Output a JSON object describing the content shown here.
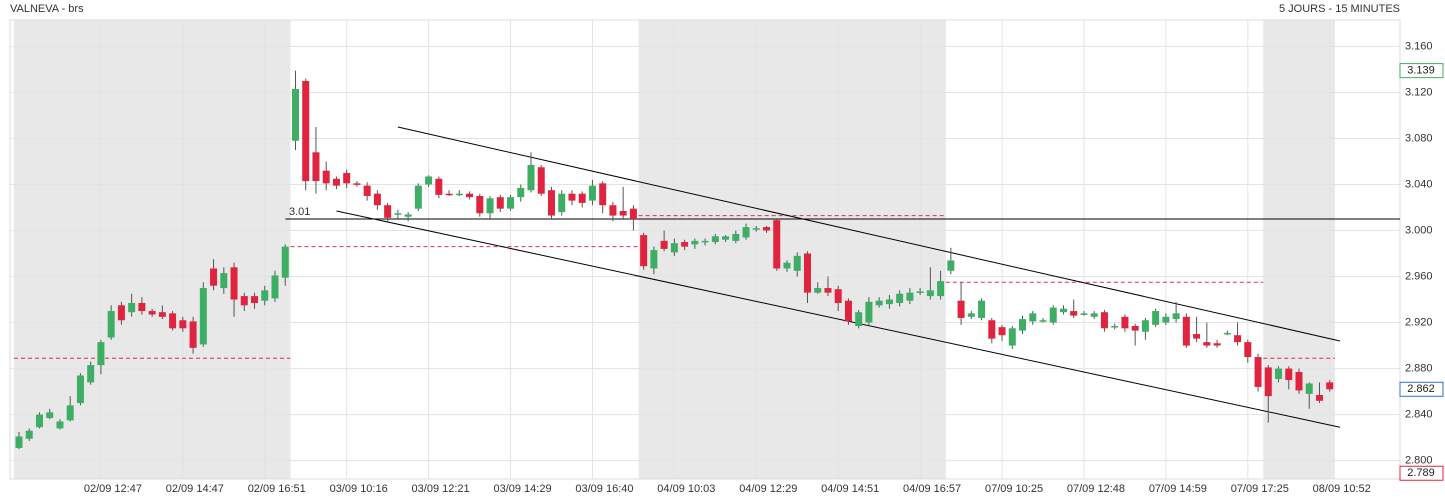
{
  "chart_data": {
    "type": "candlestick",
    "title": "VALNEVA - brs",
    "subtitle": "5 JOURS - 15 MINUTES",
    "categories": [
      null,
      null,
      null,
      null,
      null,
      null,
      null,
      null,
      "02/09 12:47",
      null,
      null,
      null,
      null,
      null,
      null,
      null,
      "02/09 14:47",
      null,
      null,
      null,
      null,
      null,
      null,
      null,
      "02/09 16:51",
      null,
      null,
      null,
      null,
      null,
      null,
      null,
      "03/09 10:16",
      null,
      null,
      null,
      null,
      null,
      null,
      null,
      "03/09 12:21",
      null,
      null,
      null,
      null,
      null,
      null,
      null,
      "03/09 14:29",
      null,
      null,
      null,
      null,
      null,
      null,
      null,
      "03/09 16:40",
      null,
      null,
      null,
      null,
      null,
      null,
      null,
      "04/09 10:03",
      null,
      null,
      null,
      null,
      null,
      null,
      null,
      "04/09 12:29",
      null,
      null,
      null,
      null,
      null,
      null,
      null,
      "04/09 14:51",
      null,
      null,
      null,
      null,
      null,
      null,
      null,
      "04/09 16:57",
      null,
      null,
      null,
      null,
      null,
      null,
      null,
      "07/09 10:25",
      null,
      null,
      null,
      null,
      null,
      null,
      null,
      "07/09 12:48",
      null,
      null,
      null,
      null,
      null,
      null,
      null,
      "07/09 14:59",
      null,
      null,
      null,
      null,
      null,
      null,
      null,
      "07/09 17:25",
      null,
      null,
      null,
      null,
      null,
      null,
      null,
      "08/09 10:52"
    ],
    "open": [
      2.811,
      2.819,
      2.829,
      2.837,
      2.828,
      2.835,
      2.85,
      2.868,
      2.883,
      2.907,
      2.935,
      2.929,
      2.937,
      2.93,
      2.929,
      2.928,
      2.922,
      2.921,
      2.901,
      2.967,
      2.95,
      2.968,
      2.943,
      2.943,
      2.939,
      2.941,
      2.959,
      3.078,
      3.13,
      3.068,
      3.052,
      3.045,
      3.05,
      3.041,
      3.039,
      3.032,
      3.022,
      3.014,
      3.012,
      3.019,
      3.04,
      3.045,
      3.032,
      3.031,
      3.032,
      3.03,
      3.015,
      3.029,
      3.019,
      3.029,
      3.035,
      3.055,
      3.035,
      3.016,
      3.032,
      3.032,
      3.026,
      3.041,
      3.022,
      3.017,
      3.019,
      2.996,
      2.967,
      2.991,
      2.981,
      2.99,
      2.988,
      2.99,
      2.99,
      2.992,
      2.991,
      2.994,
      3.002,
      3.003,
      3.009,
      2.967,
      2.965,
      2.98,
      2.946,
      2.95,
      2.949,
      2.939,
      2.917,
      2.92,
      2.935,
      2.936,
      2.937,
      2.939,
      2.946,
      2.943,
      2.943,
      2.965,
      2.939,
      2.925,
      2.924,
      2.922,
      2.916,
      2.9,
      2.913,
      2.921,
      2.922,
      2.92,
      2.929,
      2.93,
      2.928,
      2.925,
      2.929,
      2.917,
      2.925,
      2.917,
      2.912,
      2.918,
      2.92,
      2.923,
      2.925,
      2.91,
      2.903,
      2.902,
      2.911,
      2.909,
      2.903,
      2.89,
      2.881,
      2.871,
      2.88,
      2.877,
      2.858,
      2.857,
      2.868
    ],
    "high": [
      2.825,
      2.828,
      2.842,
      2.845,
      2.836,
      2.856,
      2.876,
      2.886,
      2.905,
      2.935,
      2.938,
      2.945,
      2.942,
      2.932,
      2.935,
      2.93,
      2.925,
      2.925,
      2.955,
      2.975,
      2.968,
      2.972,
      2.946,
      2.946,
      2.952,
      2.965,
      2.988,
      3.139,
      3.132,
      3.09,
      3.06,
      3.047,
      3.053,
      3.043,
      3.042,
      3.035,
      3.024,
      3.018,
      3.016,
      3.041,
      3.048,
      3.047,
      3.035,
      3.035,
      3.034,
      3.032,
      3.03,
      3.031,
      3.031,
      3.04,
      3.068,
      3.057,
      3.038,
      3.035,
      3.035,
      3.034,
      3.044,
      3.043,
      3.025,
      3.038,
      3.022,
      2.998,
      2.986,
      3.0,
      2.993,
      2.992,
      2.993,
      2.993,
      2.997,
      2.996,
      3.0,
      3.006,
      3.004,
      3.004,
      3.01,
      2.974,
      2.981,
      2.982,
      2.955,
      2.96,
      2.952,
      2.941,
      2.931,
      2.942,
      2.942,
      2.944,
      2.948,
      2.95,
      2.95,
      2.968,
      2.965,
      2.985,
      2.955,
      2.93,
      2.941,
      2.924,
      2.918,
      2.917,
      2.926,
      2.93,
      2.924,
      2.935,
      2.935,
      2.94,
      2.93,
      2.93,
      2.931,
      2.919,
      2.927,
      2.919,
      2.924,
      2.932,
      2.928,
      2.938,
      2.928,
      2.925,
      2.92,
      2.905,
      2.913,
      2.92,
      2.905,
      2.893,
      2.883,
      2.882,
      2.882,
      2.88,
      2.868,
      2.868,
      2.87
    ],
    "low": [
      2.81,
      2.817,
      2.828,
      2.836,
      2.827,
      2.834,
      2.848,
      2.866,
      2.875,
      2.905,
      2.918,
      2.925,
      2.927,
      2.925,
      2.923,
      2.913,
      2.912,
      2.893,
      2.899,
      2.948,
      2.945,
      2.925,
      2.93,
      2.932,
      2.935,
      2.938,
      2.952,
      3.07,
      3.035,
      3.032,
      3.035,
      3.036,
      3.037,
      3.038,
      3.026,
      3.018,
      3.008,
      3.01,
      3.008,
      3.017,
      3.038,
      3.028,
      3.03,
      3.03,
      3.027,
      3.012,
      3.01,
      3.016,
      3.017,
      3.025,
      3.033,
      3.03,
      3.01,
      3.013,
      3.022,
      3.02,
      3.022,
      3.015,
      3.008,
      3.01,
      3.0,
      2.966,
      2.962,
      2.982,
      2.978,
      2.983,
      2.984,
      2.987,
      2.988,
      2.99,
      2.989,
      2.992,
      2.999,
      2.998,
      2.965,
      2.964,
      2.96,
      2.937,
      2.945,
      2.943,
      2.93,
      2.918,
      2.915,
      2.917,
      2.933,
      2.932,
      2.934,
      2.936,
      2.944,
      2.94,
      2.94,
      2.962,
      2.918,
      2.923,
      2.922,
      2.902,
      2.904,
      2.897,
      2.91,
      2.918,
      2.92,
      2.918,
      2.927,
      2.924,
      2.926,
      2.923,
      2.912,
      2.914,
      2.912,
      2.9,
      2.905,
      2.916,
      2.918,
      2.92,
      2.898,
      2.903,
      2.898,
      2.898,
      2.909,
      2.9,
      2.885,
      2.86,
      2.833,
      2.868,
      2.862,
      2.858,
      2.845,
      2.85,
      2.86
    ],
    "close": [
      2.821,
      2.826,
      2.84,
      2.842,
      2.834,
      2.848,
      2.874,
      2.883,
      2.903,
      2.93,
      2.922,
      2.937,
      2.93,
      2.927,
      2.925,
      2.915,
      2.915,
      2.898,
      2.95,
      2.952,
      2.963,
      2.94,
      2.935,
      2.937,
      2.948,
      2.961,
      2.986,
      3.123,
      3.043,
      3.043,
      3.041,
      3.039,
      3.041,
      3.04,
      3.03,
      3.022,
      3.011,
      3.015,
      3.014,
      3.039,
      3.047,
      3.031,
      3.031,
      3.032,
      3.029,
      3.015,
      3.028,
      3.019,
      3.029,
      3.037,
      3.057,
      3.032,
      3.013,
      3.032,
      3.026,
      3.024,
      3.039,
      3.022,
      3.013,
      3.013,
      3.01,
      2.969,
      2.983,
      2.984,
      2.989,
      2.986,
      2.991,
      2.991,
      2.995,
      2.995,
      2.997,
      3.003,
      3.002,
      3.0,
      2.967,
      2.972,
      2.978,
      2.946,
      2.95,
      2.946,
      2.937,
      2.921,
      2.929,
      2.938,
      2.939,
      2.94,
      2.945,
      2.946,
      2.947,
      2.948,
      2.956,
      2.974,
      2.924,
      2.928,
      2.939,
      2.906,
      2.909,
      2.915,
      2.923,
      2.928,
      2.922,
      2.933,
      2.932,
      2.926,
      2.928,
      2.928,
      2.915,
      2.917,
      2.915,
      2.913,
      2.922,
      2.93,
      2.925,
      2.928,
      2.9,
      2.906,
      2.9,
      2.9,
      2.911,
      2.903,
      2.89,
      2.864,
      2.856,
      2.88,
      2.87,
      2.861,
      2.867,
      2.852,
      2.862
    ],
    "up_color": "#3dae63",
    "down_color": "#e0243f",
    "ylim": [
      2.784,
      3.183
    ],
    "yticks": [
      {
        "value": 2.8,
        "label": "2.800"
      },
      {
        "value": 2.84,
        "label": "2.840"
      },
      {
        "value": 2.88,
        "label": "2.880"
      },
      {
        "value": 2.92,
        "label": "2.920"
      },
      {
        "value": 2.96,
        "label": "2.960"
      },
      {
        "value": 3.0,
        "label": "3.000"
      },
      {
        "value": 3.04,
        "label": "3.040"
      },
      {
        "value": 3.08,
        "label": "3.080"
      },
      {
        "value": 3.12,
        "label": "3.120"
      },
      {
        "value": 3.16,
        "label": "3.160"
      }
    ],
    "grid": true,
    "level": 3.01,
    "previous_close_levels": [
      2.889,
      2.986,
      3.013,
      2.955,
      2.889
    ],
    "trendlines": [
      {
        "x": [
          37,
          129
        ],
        "y": [
          3.09,
          2.904
        ]
      },
      {
        "x": [
          31,
          129
        ],
        "y": [
          3.017,
          2.829
        ]
      }
    ],
    "period_low": 2.789
  }
}
